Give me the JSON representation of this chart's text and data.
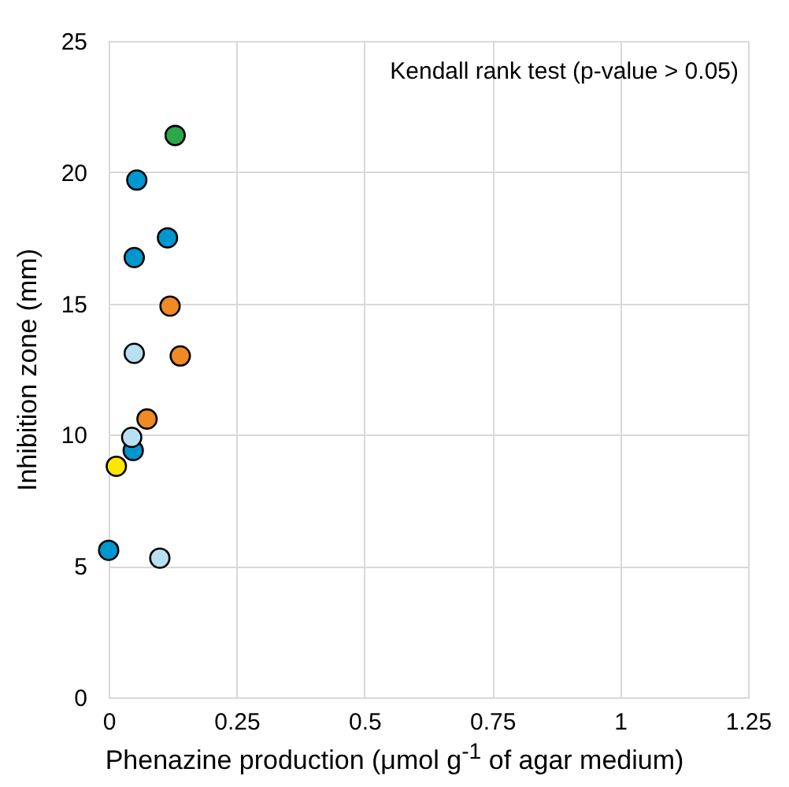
{
  "chart_data": {
    "type": "scatter",
    "xlabel": "Phenazine production (μmol g$^{-1}$ of agar medium)",
    "ylabel": "Inhibition zone (mm)",
    "annotations": [
      "Kendall rank test (p-value > 0.05)"
    ],
    "xlim": [
      0,
      1.25
    ],
    "xticks": [
      0,
      0.25,
      0.5,
      0.75,
      1,
      1.25
    ],
    "ylim": [
      0,
      25
    ],
    "yticks": [
      0,
      5,
      10,
      15,
      20,
      25
    ],
    "grid": true,
    "marker": "circle",
    "legend": false,
    "series": [
      {
        "color": "#2aa84a",
        "x": [
          0.13
        ],
        "values": [
          21.4
        ]
      },
      {
        "color": "#0096d0",
        "x": [
          0.055,
          0.115,
          0.05,
          0.048,
          0.0
        ],
        "values": [
          19.7,
          17.5,
          16.75,
          9.4,
          5.6
        ]
      },
      {
        "color": "#f08a24",
        "x": [
          0.12,
          0.14,
          0.075
        ],
        "values": [
          14.9,
          13.0,
          10.6
        ]
      },
      {
        "color": "#b8e0f0",
        "x": [
          0.05,
          0.045,
          0.1
        ],
        "values": [
          13.1,
          9.9,
          5.3
        ]
      },
      {
        "color": "#ffe600",
        "x": [
          0.015
        ],
        "values": [
          8.8
        ]
      }
    ]
  }
}
